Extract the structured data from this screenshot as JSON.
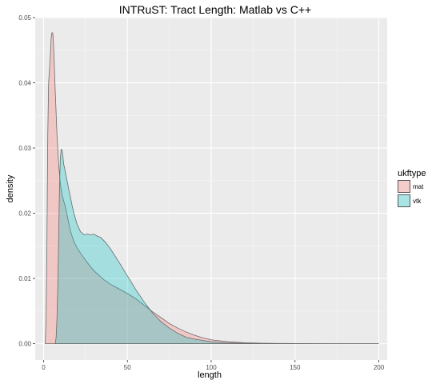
{
  "chart_data": {
    "type": "area",
    "title": "INTRuST: Tract Length: Matlab vs C++",
    "xlabel": "length",
    "ylabel": "density",
    "xlim": [
      -5,
      205
    ],
    "ylim": [
      -0.0025,
      0.05
    ],
    "x_ticks": [
      0,
      50,
      100,
      150,
      200
    ],
    "y_ticks": [
      0.0,
      0.01,
      0.02,
      0.03,
      0.04,
      0.05
    ],
    "x_tick_labels": [
      "0",
      "50",
      "100",
      "150",
      "200"
    ],
    "y_tick_labels": [
      "0.00",
      "0.01",
      "0.02",
      "0.03",
      "0.04",
      "0.05"
    ],
    "grid": true,
    "legend": {
      "title": "ukftype",
      "position": "right",
      "entries": [
        "mat",
        "vtk"
      ]
    },
    "series": [
      {
        "name": "mat",
        "fill": "#f8766d",
        "x": [
          1,
          1.5,
          2,
          2.5,
          3,
          3.5,
          4,
          4.5,
          5,
          5.5,
          6,
          6.5,
          7,
          8,
          9,
          10,
          11,
          12,
          13,
          14,
          15,
          16,
          18,
          20,
          22,
          25,
          28,
          30,
          33,
          36,
          40,
          45,
          50,
          55,
          60,
          65,
          70,
          75,
          80,
          85,
          90,
          95,
          100,
          110,
          120,
          130,
          140,
          150,
          160,
          170,
          180,
          190,
          200
        ],
        "y": [
          0,
          0.004,
          0.016,
          0.032,
          0.04,
          0.042,
          0.044,
          0.0468,
          0.0477,
          0.0476,
          0.0455,
          0.042,
          0.0385,
          0.032,
          0.0275,
          0.0245,
          0.0228,
          0.0219,
          0.021,
          0.0198,
          0.0185,
          0.0173,
          0.0157,
          0.0147,
          0.0139,
          0.0128,
          0.0118,
          0.0112,
          0.0105,
          0.0098,
          0.0091,
          0.0084,
          0.0077,
          0.0069,
          0.0059,
          0.0049,
          0.004,
          0.0031,
          0.0024,
          0.0018,
          0.0013,
          0.0009,
          0.0006,
          0.0003,
          0.00015,
          8e-05,
          4e-05,
          2e-05,
          1e-05,
          0,
          0,
          0,
          0
        ]
      },
      {
        "name": "vtk",
        "fill": "#00bfc4",
        "x": [
          7,
          7.5,
          8,
          8.5,
          9,
          9.5,
          10,
          10.5,
          11,
          11.5,
          12,
          12.5,
          13,
          14,
          15,
          16,
          17,
          18,
          19,
          20,
          22,
          24,
          26,
          28,
          30,
          32,
          34,
          36,
          38,
          40,
          45,
          50,
          55,
          60,
          65,
          70,
          75,
          80,
          85,
          90,
          95,
          100,
          105,
          110,
          120,
          130,
          140,
          150,
          160,
          170,
          180,
          190,
          200
        ],
        "y": [
          0,
          0.001,
          0.004,
          0.009,
          0.016,
          0.024,
          0.0285,
          0.0298,
          0.0297,
          0.0288,
          0.0275,
          0.027,
          0.0263,
          0.025,
          0.0237,
          0.0225,
          0.0212,
          0.0201,
          0.0192,
          0.0183,
          0.0172,
          0.0167,
          0.0168,
          0.0167,
          0.0168,
          0.0165,
          0.0163,
          0.0158,
          0.0152,
          0.0145,
          0.0125,
          0.0104,
          0.0083,
          0.0064,
          0.0047,
          0.0034,
          0.0024,
          0.0016,
          0.001,
          0.0007,
          0.0005,
          0.0003,
          0.0002,
          0.00012,
          6e-05,
          3e-05,
          1e-05,
          0,
          0,
          0,
          0,
          0,
          0
        ]
      }
    ]
  }
}
